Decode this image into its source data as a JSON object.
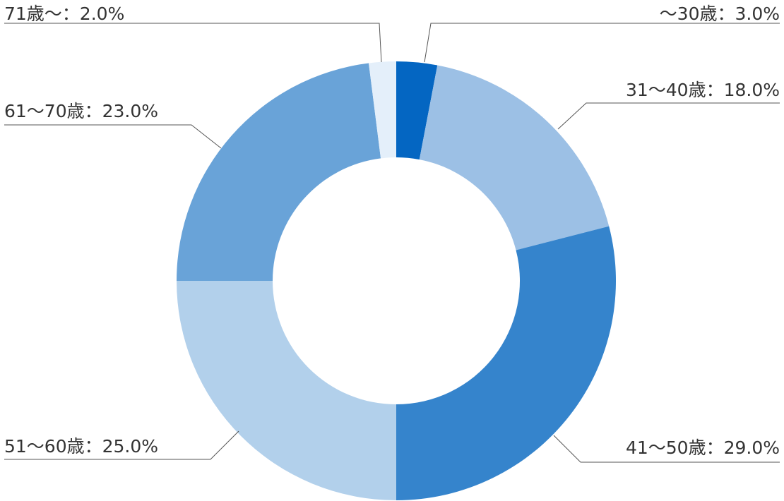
{
  "chart_data": {
    "type": "pie",
    "donut": true,
    "categories": [
      "～30歳",
      "31～40歳",
      "41～50歳",
      "51～60歳",
      "61～70歳",
      "71歳～"
    ],
    "values": [
      3.0,
      18.0,
      29.0,
      25.0,
      23.0,
      2.0
    ],
    "unit": "%",
    "labels": [
      "～30歳：3.0%",
      "31～40歳：18.0%",
      "41～50歳：29.0%",
      "51～60歳：25.0%",
      "61～70歳：23.0%",
      "71歳～：2.0%"
    ],
    "colors": [
      "#0466C2",
      "#9CC0E5",
      "#3584CC",
      "#B2D0EB",
      "#69A3D8",
      "#E4EFFA"
    ],
    "start": "12 o'clock",
    "direction": "clockwise",
    "legend": "none"
  }
}
